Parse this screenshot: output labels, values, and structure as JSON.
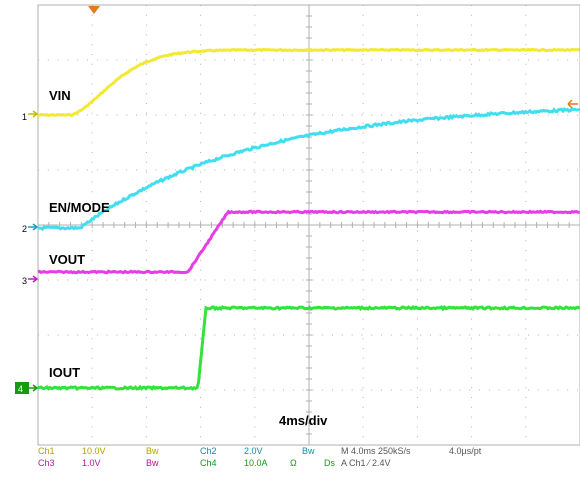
{
  "scope": {
    "colors": {
      "grid": "#b0b0b0",
      "ch1": "#f2e933",
      "ch2": "#43ddf0",
      "ch3": "#e73ce8",
      "ch4": "#32e339",
      "marker_trigger": "#e07a20"
    },
    "traces": [
      {
        "name": "VIN",
        "marker": "1",
        "color": "#f2e933"
      },
      {
        "name": "EN/MODE",
        "marker": "2",
        "color": "#43ddf0"
      },
      {
        "name": "VOUT",
        "marker": "3",
        "color": "#e73ce8"
      },
      {
        "name": "IOUT",
        "marker": "4",
        "color": "#32e339"
      }
    ],
    "timebase_label": "4ms/div",
    "status_row1": {
      "ch1": "Ch1",
      "ch1_scale": "10.0V",
      "ch1_bw": "Bw",
      "ch2": "Ch2",
      "ch2_scale": "2.0V",
      "ch2_bw": "Bw",
      "horizontal": "M 4.0ms 250kS/s",
      "record": "4.0µs/pt"
    },
    "status_row2": {
      "ch3": "Ch3",
      "ch3_scale": "1.0V",
      "ch3_bw": "Bw",
      "ch4": "Ch4",
      "ch4_scale": "10.0A",
      "ch4_unit": "Ω",
      "ch4_bw": "Ds",
      "trigger": "A Ch1 ⁄ 2.4V"
    }
  }
}
